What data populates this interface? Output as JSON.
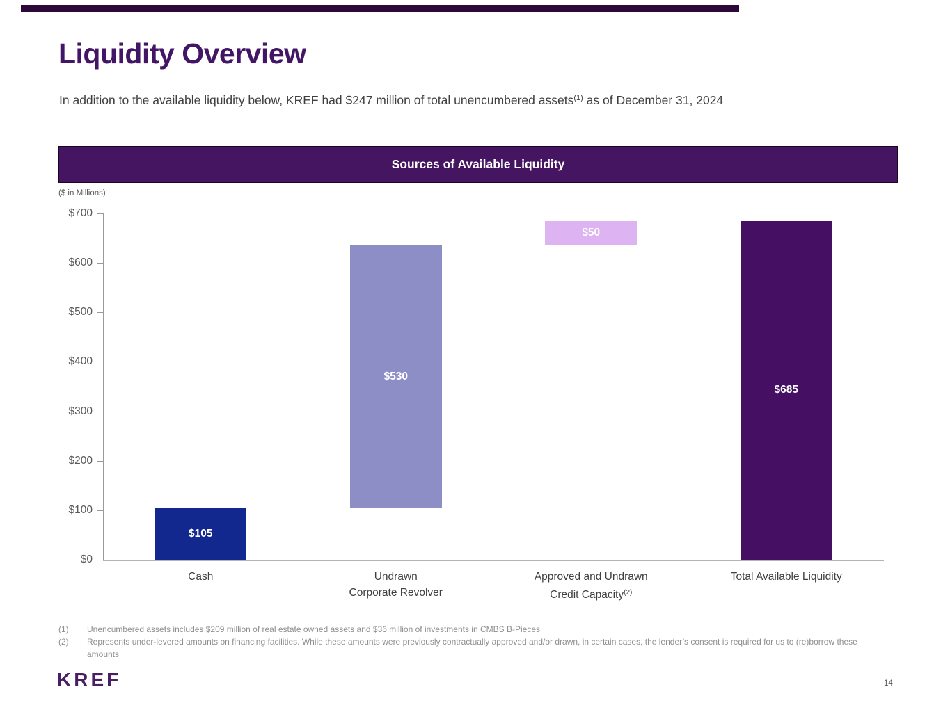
{
  "slide": {
    "title": "Liquidity Overview",
    "subtitle_prefix": "In addition to the available liquidity below, KREF had $247 million of total unencumbered assets",
    "subtitle_superscript": "(1)",
    "subtitle_suffix": " as of December 31, 2024",
    "logo_text": "KREF",
    "page_number": "14"
  },
  "banner": {
    "title": "Sources of Available Liquidity"
  },
  "chart_data": {
    "type": "bar",
    "subtype": "floating-waterfall",
    "title": "Sources of Available Liquidity",
    "units_label": "($ in Millions)",
    "categories": [
      "Cash",
      "Undrawn Corporate Revolver",
      "Approved and Undrawn Credit Capacity(2)",
      "Total Available Liquidity"
    ],
    "values": [
      105,
      530,
      50,
      685
    ],
    "segment_start": [
      0,
      105,
      635,
      0
    ],
    "segment_end": [
      105,
      635,
      685,
      685
    ],
    "data_labels": [
      "$105",
      "$530",
      "$50",
      "$685"
    ],
    "bar_colors": [
      "#12288F",
      "#8D8EC6",
      "#DDB4F1",
      "#451063"
    ],
    "data_label_color": "#FFFFFF",
    "ylim": [
      0,
      700
    ],
    "ytick_step": 100,
    "ytick_labels": [
      "$0",
      "$100",
      "$200",
      "$300",
      "$400",
      "$500",
      "$600",
      "$700"
    ],
    "grid": false,
    "legend": false
  },
  "category_display": [
    {
      "lines": [
        "Cash"
      ],
      "sup": ""
    },
    {
      "lines": [
        "Undrawn",
        "Corporate Revolver"
      ],
      "sup": ""
    },
    {
      "lines": [
        "Approved and Undrawn",
        "Credit Capacity"
      ],
      "sup": "(2)"
    },
    {
      "lines": [
        "Total Available Liquidity"
      ],
      "sup": ""
    }
  ],
  "footnotes": [
    {
      "marker": "(1)",
      "text": "Unencumbered assets includes $209 million of real estate owned assets and $36 million of investments in CMBS B-Pieces"
    },
    {
      "marker": "(2)",
      "text": "Represents under-levered amounts on financing facilities. While these amounts were previously contractually approved and/or drawn, in certain cases, the lender’s consent is required for us to (re)borrow these amounts"
    }
  ],
  "colors": {
    "top_rule": "#2D0838",
    "title_text": "#421566",
    "banner_bg": "#451561",
    "banner_border": "#1E0526",
    "logo_text": "#4A1E63",
    "axis_line": "#9A9A9A",
    "baseline": "#B3B3B3",
    "tick_label": "#595959",
    "category_label": "#404040",
    "footnote_text": "#8F8F8F"
  }
}
